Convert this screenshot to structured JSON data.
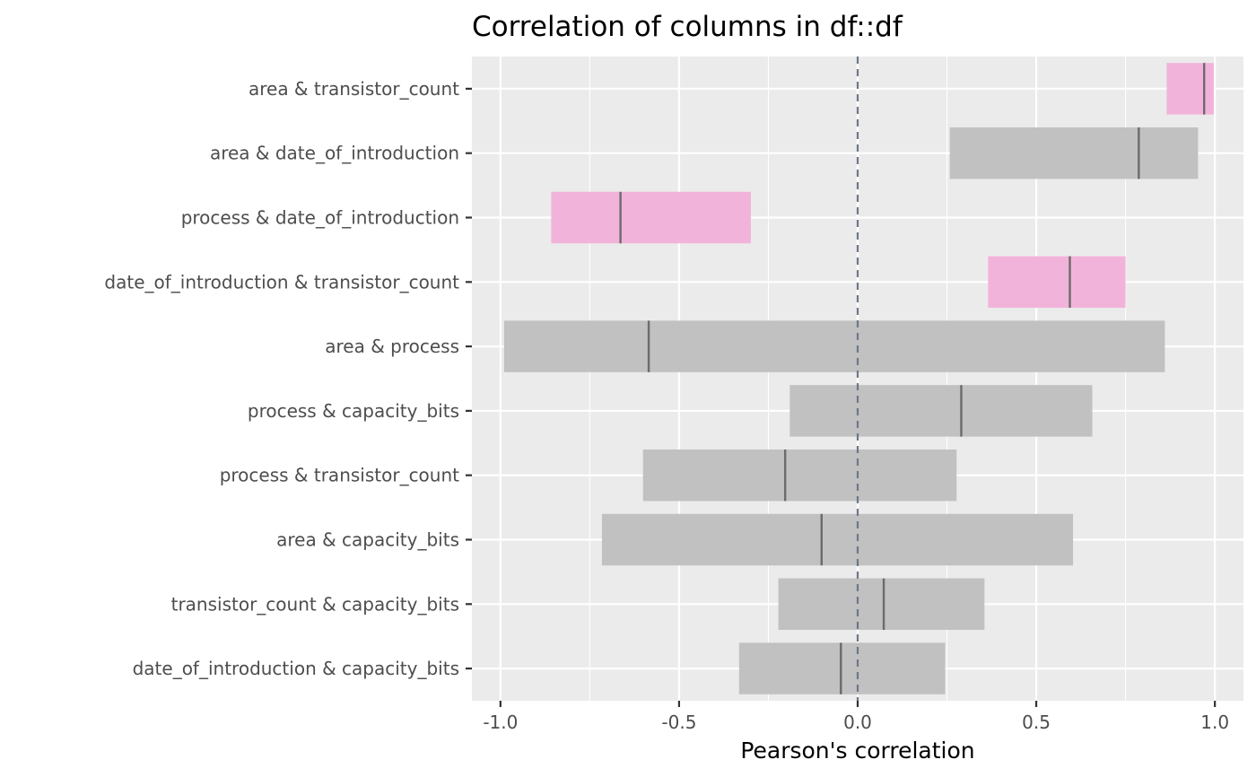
{
  "chart_data": {
    "type": "bar",
    "title": "Correlation of columns in df::df",
    "xlabel": "Pearson's correlation",
    "ylabel": "",
    "xlim": [
      -1.08,
      1.08
    ],
    "x_ticks": [
      -1.0,
      -0.5,
      0.0,
      0.5,
      1.0
    ],
    "x_tick_labels": [
      "-1.0",
      "-0.5",
      "0.0",
      "0.5",
      "1.0"
    ],
    "reference_line": 0,
    "grid": true,
    "legend": "none",
    "colors": {
      "panel": "#ebebeb",
      "grid": "#ffffff",
      "significant": "#f2b3da",
      "not_significant": "#c1c1c1",
      "estimate": "#6b6b6b",
      "reference": "#6e7789"
    },
    "rows": [
      {
        "label": "area & transistor_count",
        "estimate": 0.97,
        "low": 0.865,
        "high": 0.997,
        "significant": true
      },
      {
        "label": "area & date_of_introduction",
        "estimate": 0.787,
        "low": 0.258,
        "high": 0.953,
        "significant": false
      },
      {
        "label": "process & date_of_introduction",
        "estimate": -0.664,
        "low": -0.858,
        "high": -0.299,
        "significant": true
      },
      {
        "label": "date_of_introduction & transistor_count",
        "estimate": 0.594,
        "low": 0.365,
        "high": 0.75,
        "significant": true
      },
      {
        "label": "area & process",
        "estimate": -0.585,
        "low": -0.99,
        "high": 0.86,
        "significant": false
      },
      {
        "label": "process & capacity_bits",
        "estimate": 0.29,
        "low": -0.19,
        "high": 0.657,
        "significant": false
      },
      {
        "label": "process & transistor_count",
        "estimate": -0.203,
        "low": -0.601,
        "high": 0.277,
        "significant": false
      },
      {
        "label": "area & capacity_bits",
        "estimate": -0.101,
        "low": -0.716,
        "high": 0.603,
        "significant": false
      },
      {
        "label": "transistor_count & capacity_bits",
        "estimate": 0.073,
        "low": -0.222,
        "high": 0.355,
        "significant": false
      },
      {
        "label": "date_of_introduction & capacity_bits",
        "estimate": -0.047,
        "low": -0.332,
        "high": 0.245,
        "significant": false
      }
    ]
  }
}
